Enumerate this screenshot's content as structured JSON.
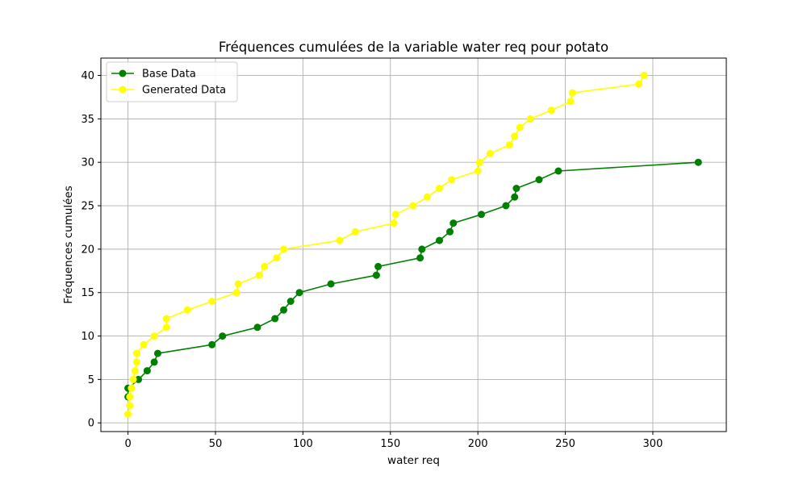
{
  "chart_data": {
    "type": "line",
    "title": "Fréquences cumulées de la variable water req pour potato",
    "xlabel": "water req",
    "ylabel": "Fréquences cumulées",
    "xlim": [
      -15.5,
      342
    ],
    "ylim": [
      -1,
      42
    ],
    "xticks": [
      0,
      50,
      100,
      150,
      200,
      250,
      300
    ],
    "yticks": [
      0,
      5,
      10,
      15,
      20,
      25,
      30,
      35,
      40
    ],
    "grid": true,
    "legend_position": "top-left",
    "series": [
      {
        "name": "Base Data",
        "color": "#008000",
        "marker": "circle",
        "x": [
          0,
          0,
          6,
          11,
          15,
          17,
          48,
          54,
          74,
          84,
          89,
          93,
          98,
          116,
          142,
          143,
          167,
          168,
          178,
          184,
          186,
          202,
          216,
          221,
          222,
          235,
          246,
          326
        ],
        "y": [
          3,
          4,
          5,
          6,
          7,
          8,
          9,
          10,
          11,
          12,
          13,
          14,
          15,
          16,
          17,
          18,
          19,
          20,
          21,
          22,
          23,
          24,
          25,
          26,
          27,
          28,
          29,
          30
        ]
      },
      {
        "name": "Generated Data",
        "color": "#ffff00",
        "marker": "circle",
        "x": [
          0,
          1,
          1,
          2,
          3,
          4,
          5,
          5,
          9,
          15,
          22,
          22,
          34,
          48,
          62,
          63,
          75,
          78,
          85,
          89,
          121,
          130,
          152,
          153,
          163,
          171,
          178,
          185,
          200,
          201,
          207,
          218,
          221,
          224,
          230,
          242,
          253,
          254,
          292,
          295
        ],
        "y": [
          1,
          2,
          3,
          4,
          5,
          6,
          7,
          8,
          9,
          10,
          11,
          12,
          13,
          14,
          15,
          16,
          17,
          18,
          19,
          20,
          21,
          22,
          23,
          24,
          25,
          26,
          27,
          28,
          29,
          30,
          31,
          32,
          33,
          34,
          35,
          36,
          37,
          38,
          39,
          40
        ]
      }
    ]
  }
}
